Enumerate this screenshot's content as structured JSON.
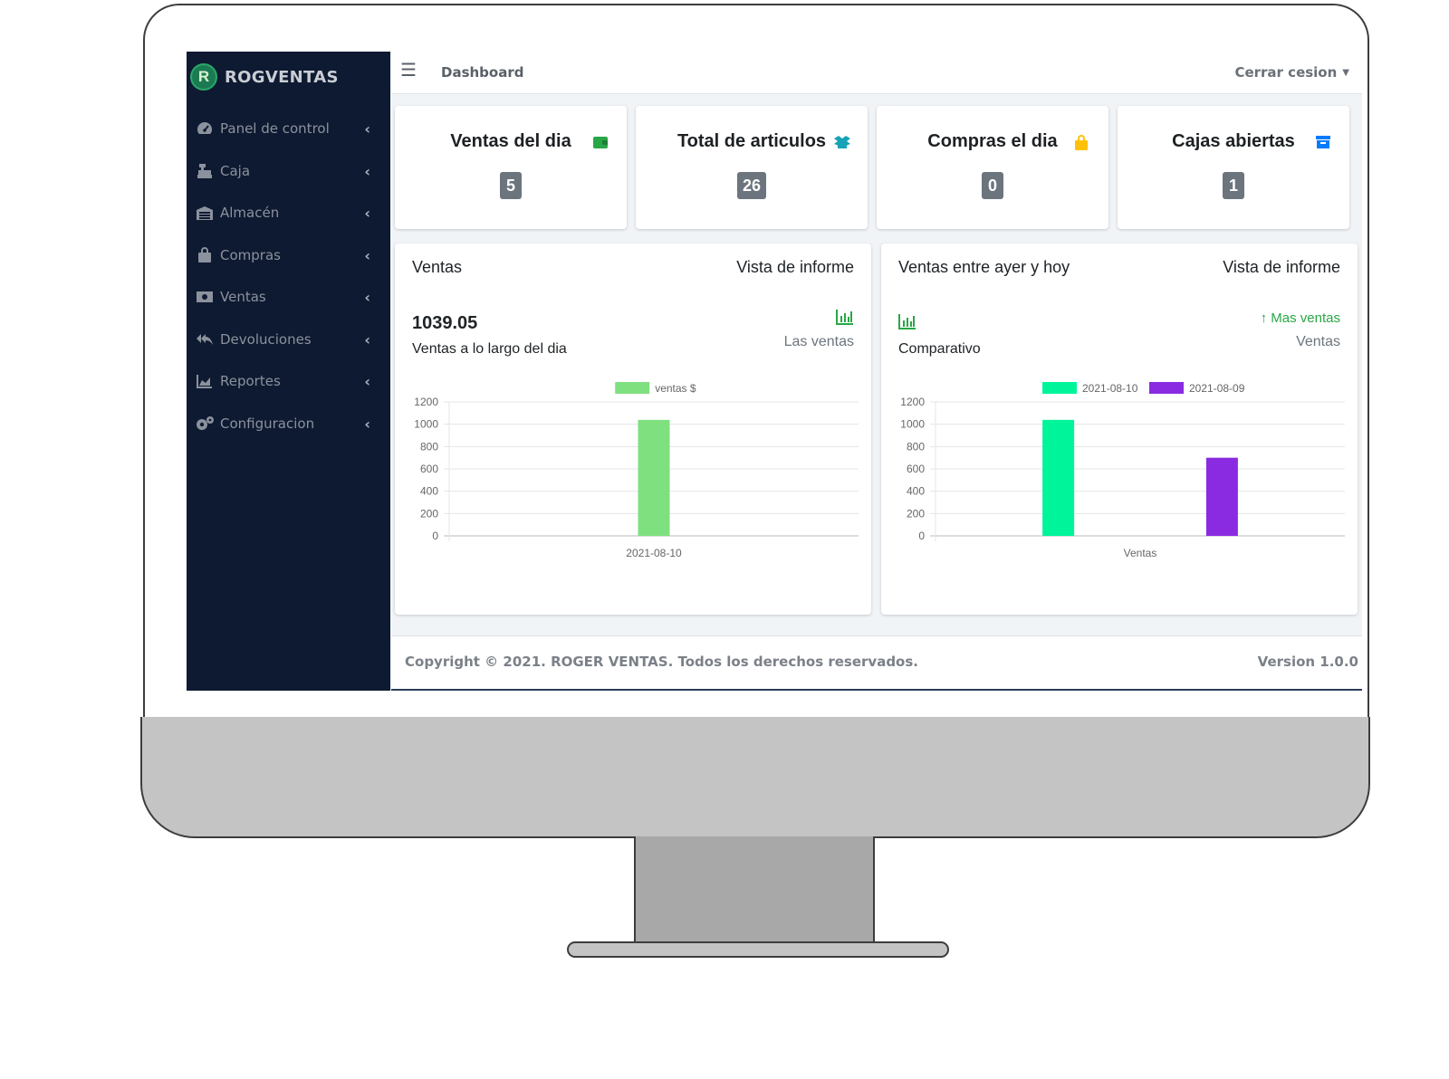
{
  "app": {
    "brand": "ROGVENTAS",
    "logo_letter": "R"
  },
  "sidebar": {
    "items": [
      {
        "label": "Panel de control",
        "icon": "tachometer-icon"
      },
      {
        "label": "Caja",
        "icon": "cash-register-icon"
      },
      {
        "label": "Almacén",
        "icon": "warehouse-icon"
      },
      {
        "label": "Compras",
        "icon": "shopping-bag-icon"
      },
      {
        "label": "Ventas",
        "icon": "money-bill-icon"
      },
      {
        "label": "Devoluciones",
        "icon": "reply-all-icon"
      },
      {
        "label": "Reportes",
        "icon": "chart-area-icon"
      },
      {
        "label": "Configuracion",
        "icon": "cogs-icon"
      }
    ]
  },
  "topbar": {
    "title": "Dashboard",
    "logout": "Cerrar cesion"
  },
  "stats": [
    {
      "title": "Ventas del dia",
      "value": "5",
      "icon": "wallet-icon",
      "color": "#28a745"
    },
    {
      "title": "Total de articulos",
      "value": "26",
      "icon": "boxes-icon",
      "color": "#17a2b8"
    },
    {
      "title": "Compras el dia",
      "value": "0",
      "icon": "shopping-bag-icon",
      "color": "#ffc107"
    },
    {
      "title": "Cajas abiertas",
      "value": "1",
      "icon": "archive-icon",
      "color": "#007bff"
    }
  ],
  "card1": {
    "title": "Ventas",
    "link": "Vista de informe",
    "value": "1039.05",
    "subtitle": "Ventas a lo largo del dia",
    "right_sub": "Las ventas"
  },
  "card2": {
    "title": "Ventas entre ayer y hoy",
    "link": "Vista de informe",
    "subtitle": "Comparativo",
    "up_label": "Mas ventas",
    "right_sub": "Ventas"
  },
  "footer": {
    "copyright": "Copyright © 2021. ROGER VENTAS. Todos los derechos reservados.",
    "version": "Version 1.0.0"
  },
  "chart_data": [
    {
      "type": "bar",
      "categories": [
        "2021-08-10"
      ],
      "series": [
        {
          "name": "ventas $",
          "values": [
            1039.05
          ],
          "color": "#7fe07f"
        }
      ],
      "ylim": [
        0,
        1200
      ],
      "yticks": [
        0,
        200,
        400,
        600,
        800,
        1000,
        1200
      ],
      "legend": "top"
    },
    {
      "type": "bar",
      "categories": [
        "Ventas"
      ],
      "series": [
        {
          "name": "2021-08-10",
          "values": [
            1039.05
          ],
          "color": "#00f59a"
        },
        {
          "name": "2021-08-09",
          "values": [
            700
          ],
          "color": "#8a2be2"
        }
      ],
      "ylim": [
        0,
        1200
      ],
      "yticks": [
        0,
        200,
        400,
        600,
        800,
        1000,
        1200
      ],
      "legend": "top"
    }
  ]
}
